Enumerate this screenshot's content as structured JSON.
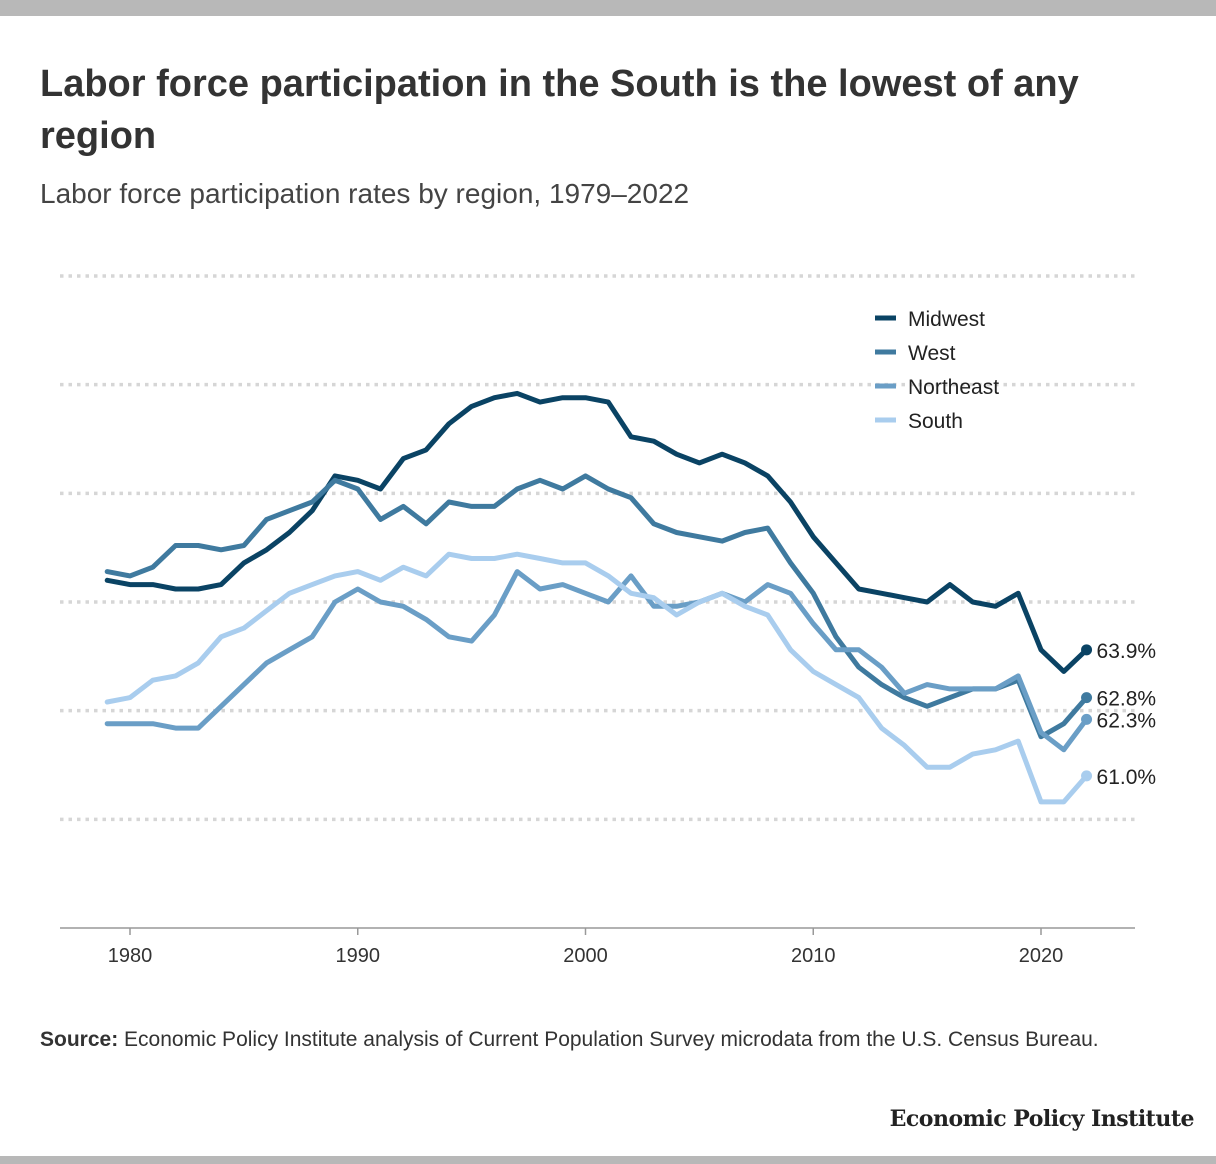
{
  "title": "Labor force participation in the South is the lowest of any region",
  "subtitle": "Labor force participation rates by region, 1979–2022",
  "source_label": "Source:",
  "source_text": " Economic Policy Institute analysis of Current Population Survey microdata from the U.S. Census Bureau.",
  "brand": "Economic Policy Institute",
  "chart_data": {
    "type": "line",
    "title": "Labor force participation rates by region, 1979–2022",
    "xlabel": "",
    "ylabel": "",
    "xlim": [
      1977,
      2024
    ],
    "ylim": [
      57.5,
      72.5
    ],
    "grid": true,
    "y_gridlines": [
      60,
      62.5,
      65,
      67.5,
      70,
      72.5
    ],
    "y_tick_labels_shown": false,
    "x_ticks": [
      1980,
      1990,
      2000,
      2010,
      2020
    ],
    "legend_position": "top-right",
    "x": [
      1979,
      1980,
      1981,
      1982,
      1983,
      1984,
      1985,
      1986,
      1987,
      1988,
      1989,
      1990,
      1991,
      1992,
      1993,
      1994,
      1995,
      1996,
      1997,
      1998,
      1999,
      2000,
      2001,
      2002,
      2003,
      2004,
      2005,
      2006,
      2007,
      2008,
      2009,
      2010,
      2011,
      2012,
      2013,
      2014,
      2015,
      2016,
      2017,
      2018,
      2019,
      2020,
      2021,
      2022
    ],
    "series": [
      {
        "name": "Midwest",
        "color": "#0a4364",
        "end_label": "63.9%",
        "values": [
          65.5,
          65.4,
          65.4,
          65.3,
          65.3,
          65.4,
          65.9,
          66.2,
          66.6,
          67.1,
          67.9,
          67.8,
          67.6,
          68.3,
          68.5,
          69.1,
          69.5,
          69.7,
          69.8,
          69.6,
          69.7,
          69.7,
          69.6,
          68.8,
          68.7,
          68.4,
          68.2,
          68.4,
          68.2,
          67.9,
          67.3,
          66.5,
          65.9,
          65.3,
          65.2,
          65.1,
          65.0,
          65.4,
          65.0,
          64.9,
          65.2,
          63.9,
          63.4,
          63.9
        ]
      },
      {
        "name": "West",
        "color": "#3f7a9f",
        "end_label": "62.8%",
        "values": [
          65.7,
          65.6,
          65.8,
          66.3,
          66.3,
          66.2,
          66.3,
          66.9,
          67.1,
          67.3,
          67.8,
          67.6,
          66.9,
          67.2,
          66.8,
          67.3,
          67.2,
          67.2,
          67.6,
          67.8,
          67.6,
          67.9,
          67.6,
          67.4,
          66.8,
          66.6,
          66.5,
          66.4,
          66.6,
          66.7,
          65.9,
          65.2,
          64.2,
          63.5,
          63.1,
          62.8,
          62.6,
          62.8,
          63.0,
          63.0,
          63.2,
          61.9,
          62.2,
          62.8
        ]
      },
      {
        "name": "Northeast",
        "color": "#6a9ec6",
        "end_label": "62.3%",
        "values": [
          62.2,
          62.2,
          62.2,
          62.1,
          62.1,
          62.6,
          63.1,
          63.6,
          63.9,
          64.2,
          65.0,
          65.3,
          65.0,
          64.9,
          64.6,
          64.2,
          64.1,
          64.7,
          65.7,
          65.3,
          65.4,
          65.2,
          65.0,
          65.6,
          64.9,
          64.9,
          65.0,
          65.2,
          65.0,
          65.4,
          65.2,
          64.5,
          63.9,
          63.9,
          63.5,
          62.9,
          63.1,
          63.0,
          63.0,
          63.0,
          63.3,
          62.0,
          61.6,
          62.3
        ]
      },
      {
        "name": "South",
        "color": "#a9cdee",
        "end_label": "61.0%",
        "values": [
          62.7,
          62.8,
          63.2,
          63.3,
          63.6,
          64.2,
          64.4,
          64.8,
          65.2,
          65.4,
          65.6,
          65.7,
          65.5,
          65.8,
          65.6,
          66.1,
          66.0,
          66.0,
          66.1,
          66.0,
          65.9,
          65.9,
          65.6,
          65.2,
          65.1,
          64.7,
          65.0,
          65.2,
          64.9,
          64.7,
          63.9,
          63.4,
          63.1,
          62.8,
          62.1,
          61.7,
          61.2,
          61.2,
          61.5,
          61.6,
          61.8,
          60.4,
          60.4,
          61.0
        ]
      }
    ]
  }
}
